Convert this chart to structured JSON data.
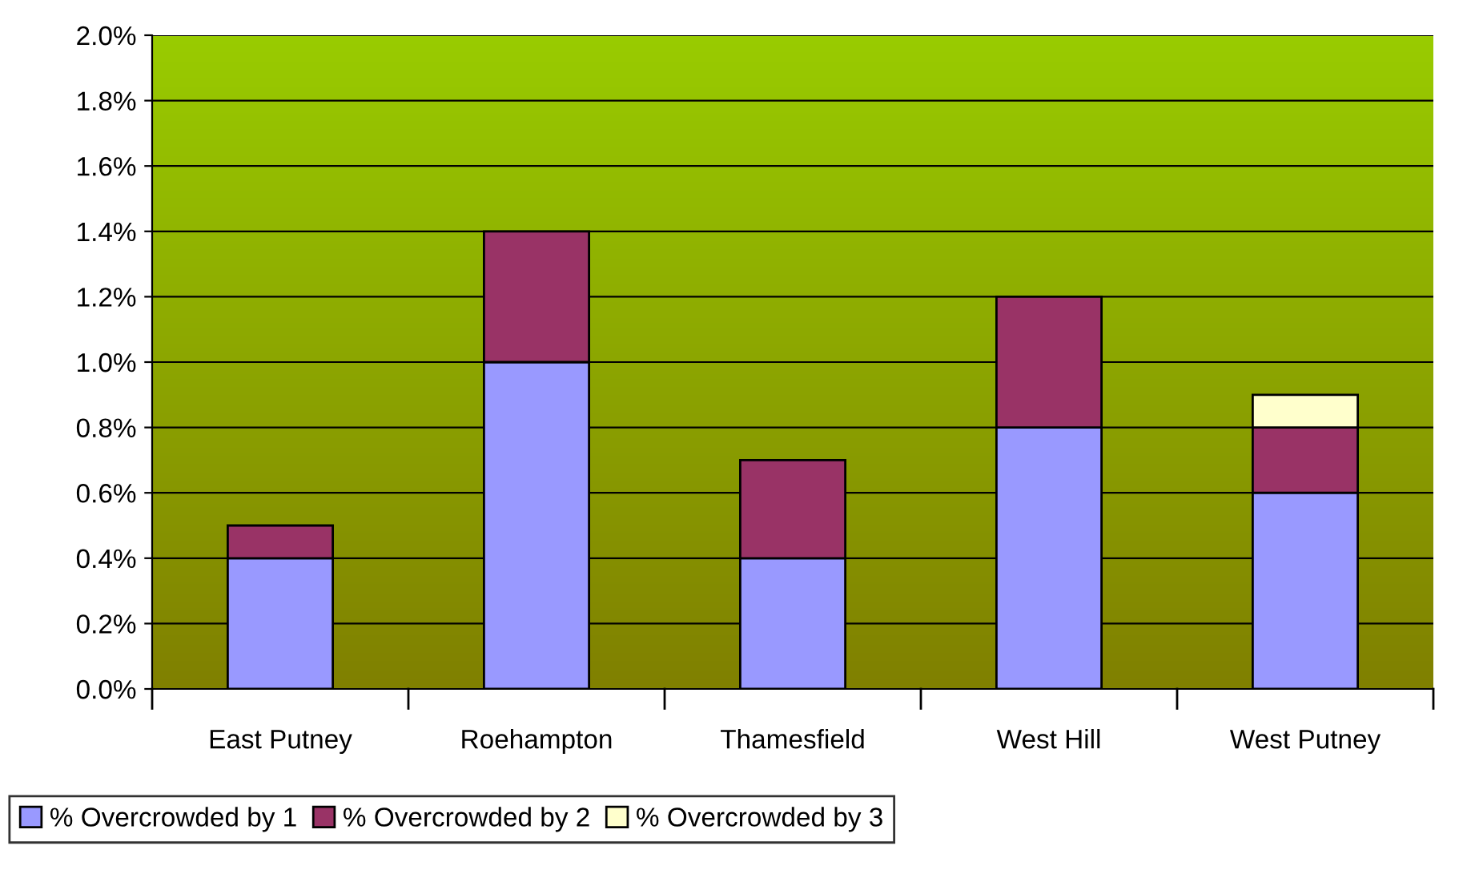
{
  "chart_data": {
    "type": "bar",
    "stacked": true,
    "categories": [
      "East Putney",
      "Roehampton",
      "Thamesfield",
      "West Hill",
      "West Putney"
    ],
    "series": [
      {
        "name": "% Overcrowded by 1",
        "color": "#9999ff",
        "values": [
          0.4,
          1.0,
          0.4,
          0.8,
          0.6
        ]
      },
      {
        "name": "% Overcrowded by 2",
        "color": "#993366",
        "values": [
          0.1,
          0.4,
          0.3,
          0.4,
          0.2
        ]
      },
      {
        "name": "% Overcrowded by 3",
        "color": "#ffffcc",
        "values": [
          null,
          null,
          null,
          null,
          0.1
        ]
      }
    ],
    "ylim": [
      0,
      2.0
    ],
    "yticks": [
      {
        "value": 0,
        "label": "0.0%"
      },
      {
        "value": 0.2,
        "label": "0.2%"
      },
      {
        "value": 0.4,
        "label": "0.4%"
      },
      {
        "value": 0.6,
        "label": "0.6%"
      },
      {
        "value": 0.8,
        "label": "0.8%"
      },
      {
        "value": 1.0,
        "label": "1.0%"
      },
      {
        "value": 1.2,
        "label": "1.2%"
      },
      {
        "value": 1.4,
        "label": "1.4%"
      },
      {
        "value": 1.6,
        "label": "1.6%"
      },
      {
        "value": 1.8,
        "label": "1.8%"
      },
      {
        "value": 2.0,
        "label": "2.0%"
      }
    ],
    "grid": "y",
    "legend": "bottom"
  }
}
